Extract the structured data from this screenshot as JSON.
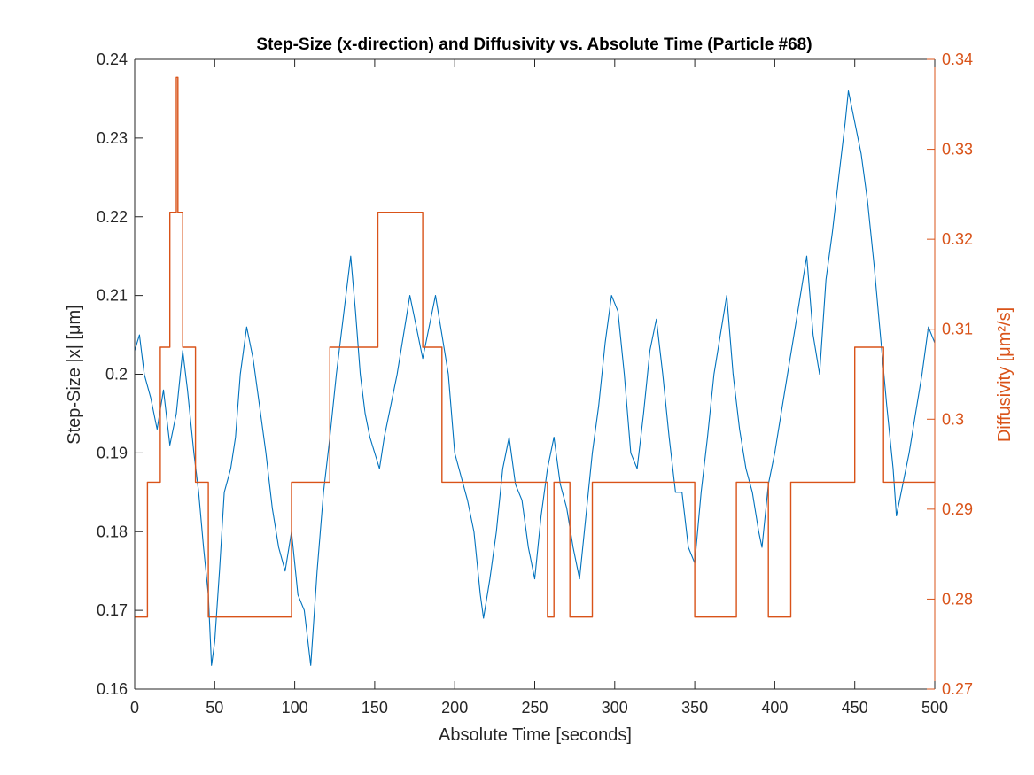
{
  "chart_data": {
    "type": "line",
    "title": "Step-Size (x-direction) and Diffusivity vs. Absolute Time (Particle #68)",
    "xlabel": "Absolute Time [seconds]",
    "xlim": [
      0,
      500
    ],
    "xticks": [
      "0",
      "50",
      "100",
      "150",
      "200",
      "250",
      "300",
      "350",
      "400",
      "450",
      "500"
    ],
    "left_axis": {
      "label": "Step-Size |x| [μm]",
      "ylim": [
        0.16,
        0.24
      ],
      "ticks": [
        "0.16",
        "0.17",
        "0.18",
        "0.19",
        "0.2",
        "0.21",
        "0.22",
        "0.23",
        "0.24"
      ],
      "color": "#000000"
    },
    "right_axis": {
      "label": "Diffusivity [μm²/s]",
      "ylim": [
        0.27,
        0.34
      ],
      "ticks": [
        "0.27",
        "0.28",
        "0.29",
        "0.3",
        "0.31",
        "0.32",
        "0.33",
        "0.34"
      ],
      "color": "#D95319"
    },
    "grid": false,
    "series": [
      {
        "axis": "left",
        "color": "#0072BD",
        "x": [
          0,
          3,
          6,
          10,
          14,
          18,
          22,
          26,
          30,
          33,
          37,
          40,
          43,
          46,
          48,
          50,
          53,
          56,
          60,
          63,
          66,
          70,
          74,
          78,
          82,
          86,
          90,
          94,
          98,
          102,
          106,
          110,
          114,
          118,
          122,
          126,
          129,
          132,
          135,
          138,
          141,
          144,
          147,
          150,
          153,
          156,
          160,
          164,
          168,
          172,
          176,
          180,
          184,
          188,
          192,
          196,
          200,
          204,
          208,
          212,
          216,
          218,
          222,
          226,
          230,
          234,
          238,
          242,
          246,
          250,
          254,
          258,
          262,
          266,
          270,
          274,
          278,
          282,
          286,
          290,
          294,
          298,
          302,
          306,
          310,
          314,
          318,
          322,
          326,
          330,
          334,
          338,
          342,
          346,
          350,
          354,
          358,
          362,
          366,
          370,
          374,
          378,
          382,
          386,
          390,
          392,
          396,
          400,
          404,
          408,
          412,
          416,
          420,
          424,
          428,
          432,
          436,
          440,
          444,
          446,
          450,
          454,
          458,
          462,
          466,
          470,
          474,
          476,
          480,
          484,
          488,
          492,
          496,
          500
        ],
        "y": [
          0.203,
          0.205,
          0.2,
          0.197,
          0.193,
          0.198,
          0.191,
          0.195,
          0.203,
          0.198,
          0.19,
          0.185,
          0.178,
          0.172,
          0.163,
          0.166,
          0.175,
          0.185,
          0.188,
          0.192,
          0.2,
          0.206,
          0.202,
          0.196,
          0.19,
          0.183,
          0.178,
          0.175,
          0.18,
          0.172,
          0.17,
          0.163,
          0.175,
          0.185,
          0.192,
          0.2,
          0.205,
          0.21,
          0.215,
          0.208,
          0.2,
          0.195,
          0.192,
          0.19,
          0.188,
          0.192,
          0.196,
          0.2,
          0.205,
          0.21,
          0.206,
          0.202,
          0.206,
          0.21,
          0.205,
          0.2,
          0.19,
          0.187,
          0.184,
          0.18,
          0.172,
          0.169,
          0.174,
          0.18,
          0.188,
          0.192,
          0.186,
          0.184,
          0.178,
          0.174,
          0.182,
          0.188,
          0.192,
          0.186,
          0.183,
          0.178,
          0.174,
          0.182,
          0.19,
          0.196,
          0.204,
          0.21,
          0.208,
          0.2,
          0.19,
          0.188,
          0.195,
          0.203,
          0.207,
          0.2,
          0.192,
          0.185,
          0.185,
          0.178,
          0.176,
          0.185,
          0.192,
          0.2,
          0.205,
          0.21,
          0.2,
          0.193,
          0.188,
          0.185,
          0.18,
          0.178,
          0.186,
          0.19,
          0.195,
          0.2,
          0.205,
          0.21,
          0.215,
          0.205,
          0.2,
          0.212,
          0.218,
          0.225,
          0.232,
          0.236,
          0.232,
          0.228,
          0.222,
          0.214,
          0.205,
          0.196,
          0.188,
          0.182,
          0.186,
          0.19,
          0.195,
          0.2,
          0.206,
          0.204
        ]
      },
      {
        "axis": "right",
        "color": "#D95319",
        "x": [
          0,
          8,
          8,
          16,
          16,
          22,
          22,
          26,
          26,
          27,
          27,
          30,
          30,
          38,
          38,
          46,
          46,
          54,
          54,
          98,
          98,
          104,
          104,
          122,
          122,
          152,
          152,
          180,
          180,
          192,
          192,
          258,
          258,
          262,
          262,
          272,
          272,
          286,
          286,
          350,
          350,
          376,
          376,
          396,
          396,
          410,
          410,
          450,
          450,
          468,
          468,
          500
        ],
        "y": [
          0.278,
          0.278,
          0.293,
          0.293,
          0.308,
          0.308,
          0.323,
          0.323,
          0.338,
          0.338,
          0.323,
          0.323,
          0.308,
          0.308,
          0.293,
          0.293,
          0.278,
          0.278,
          0.278,
          0.278,
          0.293,
          0.293,
          0.293,
          0.293,
          0.308,
          0.308,
          0.323,
          0.323,
          0.308,
          0.308,
          0.293,
          0.293,
          0.278,
          0.278,
          0.293,
          0.293,
          0.278,
          0.278,
          0.293,
          0.293,
          0.278,
          0.278,
          0.293,
          0.293,
          0.278,
          0.278,
          0.293,
          0.293,
          0.308,
          0.308,
          0.293,
          0.293
        ]
      }
    ]
  }
}
